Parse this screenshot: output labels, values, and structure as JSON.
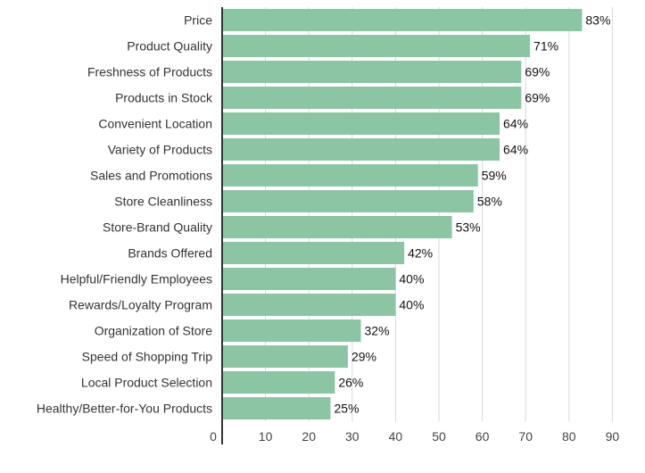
{
  "colors": {
    "bar": "#8cc5a4",
    "gridline": "#d9d9d9",
    "axis": "#333333",
    "category_label": "#333333",
    "tick_label": "#444444",
    "value_label": "#111111"
  },
  "chart_data": {
    "type": "bar",
    "orientation": "horizontal",
    "title": "",
    "xlabel": "",
    "ylabel": "",
    "xlim": [
      0,
      90
    ],
    "x_ticks": [
      0,
      10,
      20,
      30,
      40,
      50,
      60,
      70,
      80,
      90
    ],
    "grid": true,
    "value_suffix": "%",
    "categories": [
      "Price",
      "Product Quality",
      "Freshness of Products",
      "Products in Stock",
      "Convenient Location",
      "Variety of Products",
      "Sales and Promotions",
      "Store Cleanliness",
      "Store-Brand Quality",
      "Brands Offered",
      "Helpful/Friendly Employees",
      "Rewards/Loyalty Program",
      "Organization of Store",
      "Speed of Shopping Trip",
      "Local Product Selection",
      "Healthy/Better-for-You Products"
    ],
    "values": [
      83,
      71,
      69,
      69,
      64,
      64,
      59,
      58,
      53,
      42,
      40,
      40,
      32,
      29,
      26,
      25
    ],
    "value_labels": [
      "83%",
      "71%",
      "69%",
      "69%",
      "64%",
      "64%",
      "59%",
      "58%",
      "53%",
      "42%",
      "40%",
      "40%",
      "32%",
      "29%",
      "26%",
      "25%"
    ]
  }
}
